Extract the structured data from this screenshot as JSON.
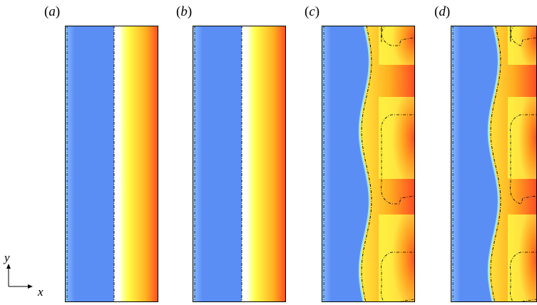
{
  "figure": {
    "panels": [
      {
        "id": "a",
        "label_prefix": "(",
        "label_letter": "a",
        "label_suffix": ")",
        "state": "flat"
      },
      {
        "id": "b",
        "label_prefix": "(",
        "label_letter": "b",
        "label_suffix": ")",
        "state": "flat"
      },
      {
        "id": "c",
        "label_prefix": "(",
        "label_letter": "c",
        "label_suffix": ")",
        "state": "wavy"
      },
      {
        "id": "d",
        "label_prefix": "(",
        "label_letter": "d",
        "label_suffix": ")",
        "state": "wavy"
      }
    ],
    "axes": {
      "x_label": "x",
      "y_label": "y"
    },
    "colors": {
      "blue": "#5b8ef5",
      "blue_light": "#7fb0ff",
      "cyan_edge": "#9ff0ff",
      "white": "#ffffff",
      "yellow": "#ffff4a",
      "orange": "#ffb020",
      "red": "#ff4a22"
    }
  }
}
